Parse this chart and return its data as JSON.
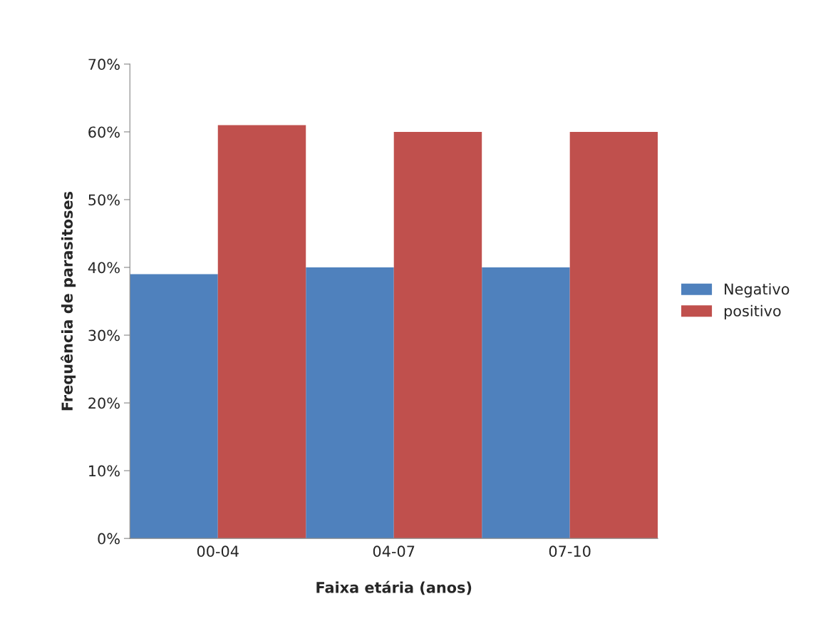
{
  "chart_data": {
    "type": "bar",
    "xlabel": "Faixa etária (anos)",
    "ylabel": "Frequência de parasitoses",
    "categories": [
      "00-04",
      "04-07",
      "07-10"
    ],
    "series": [
      {
        "name": "Negativo",
        "color": "#4f81bd",
        "values": [
          39,
          40,
          40
        ]
      },
      {
        "name": "positivo",
        "color": "#c0504d",
        "values": [
          61,
          60,
          60
        ]
      }
    ],
    "ylim": [
      0,
      70
    ],
    "yticks": [
      {
        "value": 0,
        "label": "0%"
      },
      {
        "value": 10,
        "label": "10%"
      },
      {
        "value": 20,
        "label": "20%"
      },
      {
        "value": 30,
        "label": "30%"
      },
      {
        "value": 40,
        "label": "40%"
      },
      {
        "value": 50,
        "label": "50%"
      },
      {
        "value": 60,
        "label": "60%"
      },
      {
        "value": 70,
        "label": "70%"
      }
    ],
    "grid": false,
    "legend": "right"
  }
}
